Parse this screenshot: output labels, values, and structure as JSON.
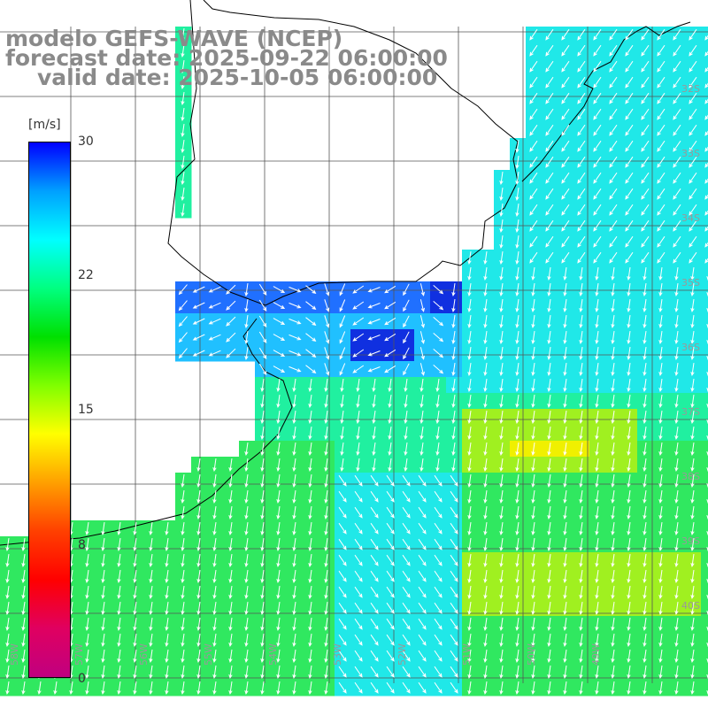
{
  "title": {
    "line1": "modelo GEFS-WAVE (NCEP)",
    "line2": "forecast date: 2025-09-22 06:00:00",
    "line3": "valid date: 2025-10-05 06:00:00"
  },
  "colorbar": {
    "unit": "[m/s]",
    "ticks": [
      "30",
      "22",
      "15",
      "8",
      "0"
    ],
    "tick_values": [
      30,
      22,
      15,
      8,
      0
    ],
    "colors": [
      "#0000ff",
      "#00a0ff",
      "#00ffff",
      "#00ff80",
      "#00e000",
      "#80ff00",
      "#ffff00",
      "#ffa000",
      "#ff4000",
      "#ff0000",
      "#e00060",
      "#c00080"
    ]
  },
  "map": {
    "lat_labels": [
      "32S",
      "33S",
      "34S",
      "35S",
      "36S",
      "37S",
      "38S",
      "39S",
      "40S"
    ],
    "lon_labels": [
      "58W",
      "57W",
      "56W",
      "55W",
      "54W",
      "53W",
      "52W",
      "51W",
      "50W",
      "49W"
    ],
    "ocean_colors": {
      "deep_blue": "#1030e0",
      "blue": "#2070ff",
      "light_blue": "#20c0ff",
      "cyan": "#20e8e8",
      "cyan_green": "#20f0a0",
      "green": "#30e860",
      "bright_green": "#40e840",
      "yellow_green": "#a0f020",
      "yellow": "#f0f000"
    }
  }
}
